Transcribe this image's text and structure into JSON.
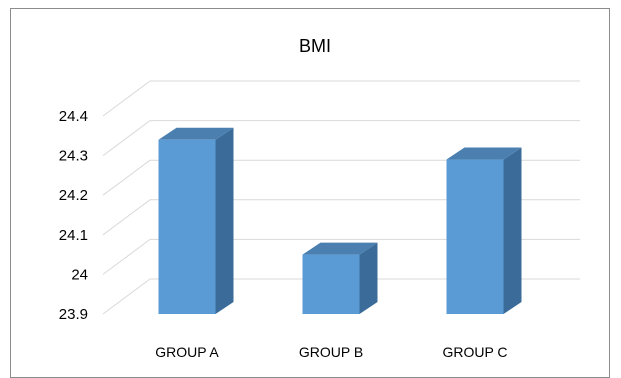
{
  "chart_data": {
    "type": "bar",
    "title": "BMI",
    "categories": [
      "GROUP A",
      "GROUP B",
      "GROUP C"
    ],
    "values": [
      24.34,
      24.05,
      24.29
    ],
    "ylim": [
      23.9,
      24.4
    ],
    "yticks": [
      "23.9",
      "24",
      "24.1",
      "24.2",
      "24.3",
      "24.4"
    ],
    "xlabel": "",
    "ylabel": "",
    "grid": true,
    "style": "3d-column",
    "colors": {
      "front": "#5b9bd5",
      "side": "#3b6c99",
      "top": "#4a7fb0",
      "grid": "#d9d9d9"
    }
  }
}
